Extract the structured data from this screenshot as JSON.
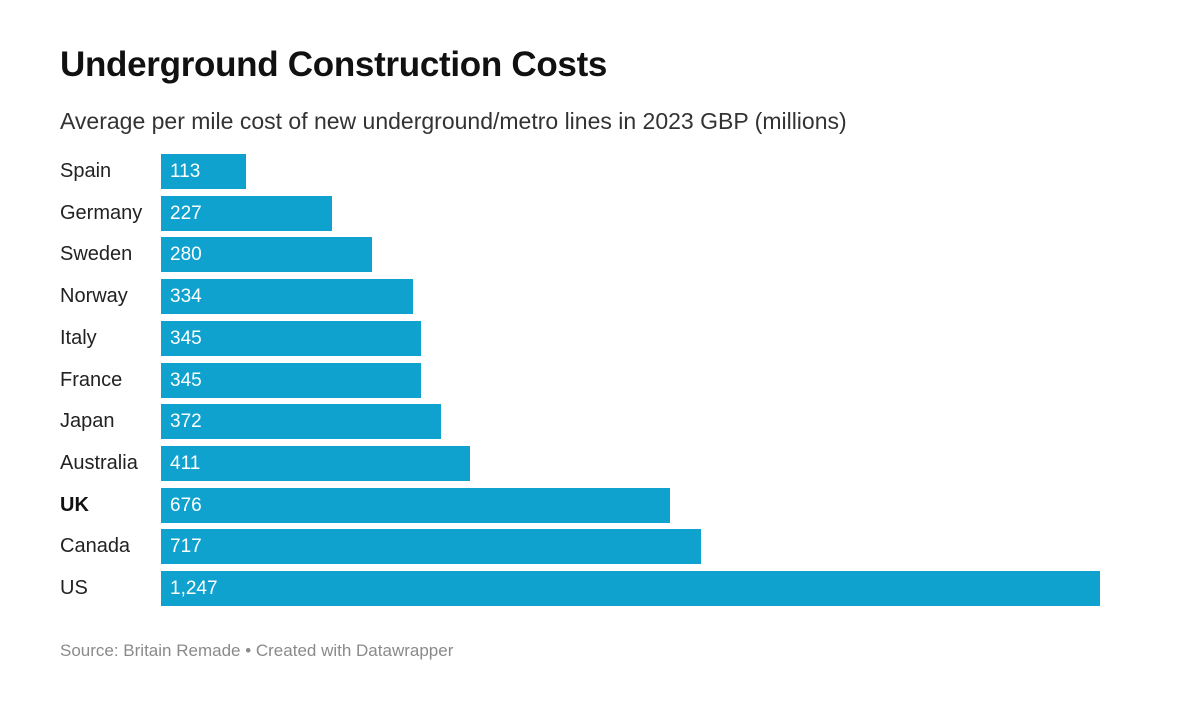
{
  "chart_data": {
    "type": "bar",
    "orientation": "horizontal",
    "title": "Underground Construction Costs",
    "subtitle": "Average per mile cost of new underground/metro lines in 2023 GBP (millions)",
    "categories": [
      "Spain",
      "Germany",
      "Sweden",
      "Norway",
      "Italy",
      "France",
      "Japan",
      "Australia",
      "UK",
      "Canada",
      "US"
    ],
    "values": [
      113,
      227,
      280,
      334,
      345,
      345,
      372,
      411,
      676,
      717,
      1247
    ],
    "value_labels": [
      "113",
      "227",
      "280",
      "334",
      "345",
      "345",
      "372",
      "411",
      "676",
      "717",
      "1,247"
    ],
    "highlight_category": "UK",
    "bar_color": "#10a2cf",
    "xlim": [
      0,
      1247
    ],
    "grid": false
  },
  "footer": {
    "source": "Source: Britain Remade • Created with Datawrapper"
  }
}
